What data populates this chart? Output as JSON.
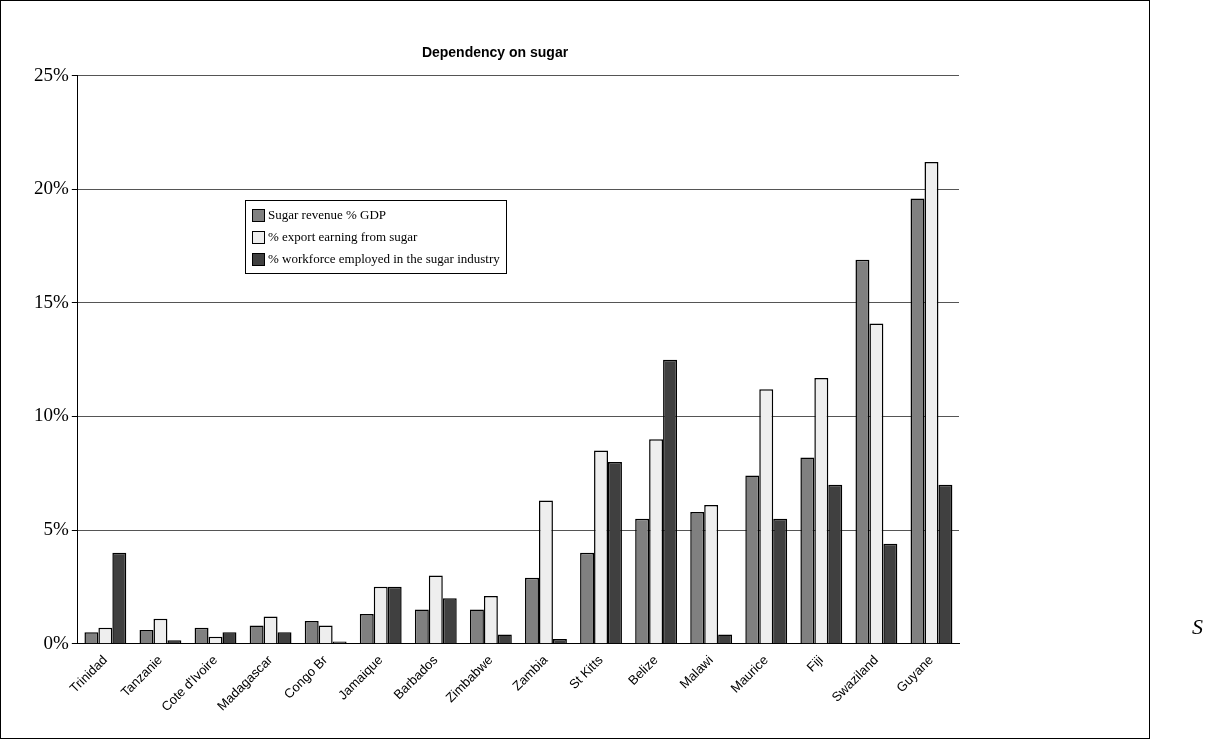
{
  "chart_data": {
    "type": "bar",
    "title": "Dependency on sugar",
    "categories": [
      "Trinidad",
      "Tanzanie",
      "Cote d'Ivoire",
      "Madagascar",
      "Congo Br",
      "Jamaique",
      "Barbados",
      "Zimbabwe",
      "Zambia",
      "St Kitts",
      "Belize",
      "Malawi",
      "Maurice",
      "Fiji",
      "Swaziland",
      "Guyane"
    ],
    "series": [
      {
        "name": "Sugar revenue % GDP",
        "color": "#808080",
        "values": [
          0.5,
          0.6,
          0.7,
          0.8,
          1.0,
          1.3,
          1.5,
          1.5,
          2.9,
          4.0,
          5.5,
          5.8,
          7.4,
          8.2,
          16.9,
          19.6
        ]
      },
      {
        "name": "% export earning from sugar",
        "color": "#eeeeee",
        "values": [
          0.7,
          1.1,
          0.3,
          1.2,
          0.8,
          2.5,
          3.0,
          2.1,
          6.3,
          8.5,
          9.0,
          6.1,
          11.2,
          11.7,
          14.1,
          21.2
        ]
      },
      {
        "name": "% workforce employed in the sugar industry",
        "color": "#404040",
        "values": [
          4.0,
          0.15,
          0.5,
          0.5,
          0.1,
          2.5,
          2.0,
          0.4,
          0.2,
          8.0,
          12.5,
          0.4,
          5.5,
          7.0,
          4.4,
          7.0
        ]
      }
    ],
    "ylim": [
      0,
      25
    ],
    "yticks": [
      {
        "value": 0,
        "label": "0%"
      },
      {
        "value": 5,
        "label": "5%"
      },
      {
        "value": 10,
        "label": "10%"
      },
      {
        "value": 15,
        "label": "15%"
      },
      {
        "value": 20,
        "label": "20%"
      },
      {
        "value": 25,
        "label": "25%"
      }
    ],
    "grid": "y",
    "legend": "top left",
    "annotations": [
      "S"
    ]
  }
}
